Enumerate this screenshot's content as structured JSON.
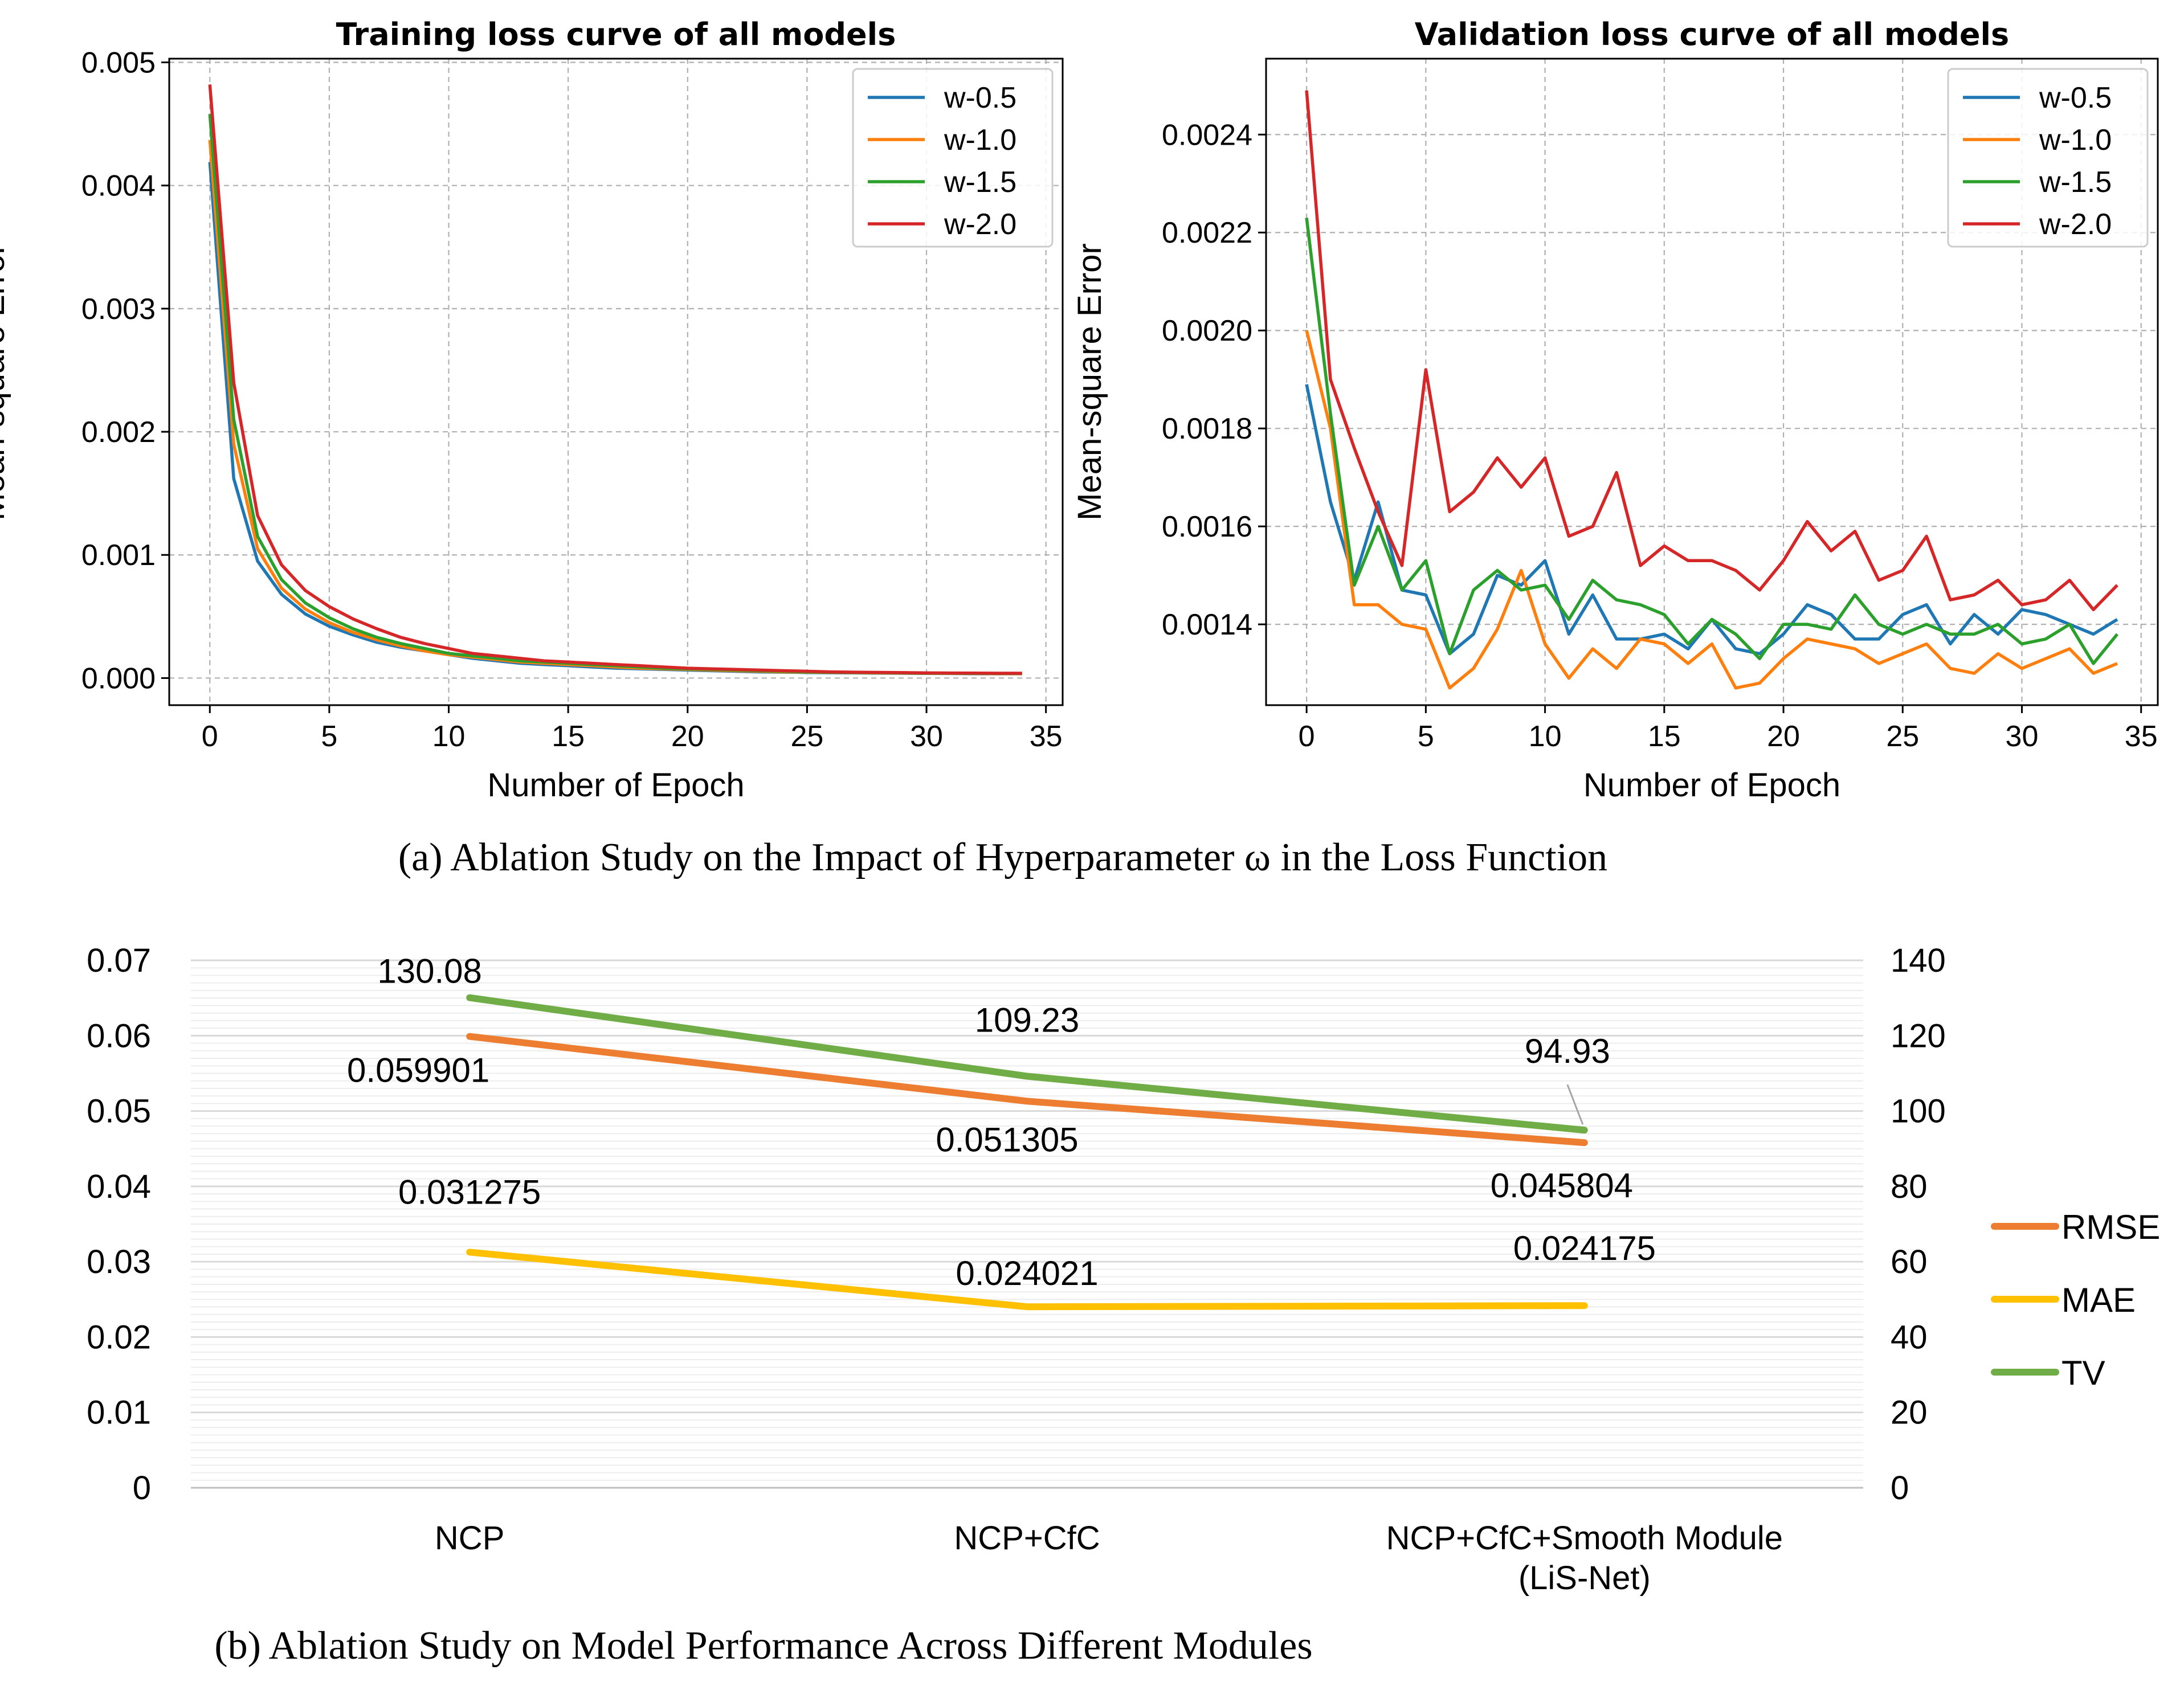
{
  "captions": {
    "a": "(a) Ablation Study on the Impact of Hyperparameter ω in the Loss Function",
    "b": "(b) Ablation Study on Model Performance Across Different Modules"
  },
  "chart_data": [
    {
      "type": "line",
      "title": "Training loss curve of all models",
      "xlabel": "Number of Epoch",
      "ylabel": "Mean-square Error",
      "xlim": [
        -1.7,
        35.7
      ],
      "ylim": [
        -0.00022,
        0.00503
      ],
      "xticks": [
        "0",
        "5",
        "10",
        "15",
        "20",
        "25",
        "30",
        "35"
      ],
      "yticks": [
        "0.000",
        "0.001",
        "0.002",
        "0.003",
        "0.004",
        "0.005"
      ],
      "grid": true,
      "legend": "top-right",
      "series": [
        {
          "name": "w-0.5",
          "color": "#1f77b4",
          "values": [
            0.00419,
            0.00162,
            0.00095,
            0.00068,
            0.00052,
            0.00042,
            0.00035,
            0.00029,
            0.00025,
            0.00022,
            0.00019,
            0.00016,
            0.00014,
            0.00012,
            0.00011,
            0.0001,
            9e-05,
            8e-05,
            7.5e-05,
            7e-05,
            6.5e-05,
            6e-05,
            5.5e-05,
            5e-05,
            4.8e-05,
            4.5e-05,
            4.3e-05,
            4.2e-05,
            4e-05,
            3.9e-05,
            3.8e-05,
            3.7e-05,
            3.6e-05,
            3.5e-05,
            3.5e-05
          ]
        },
        {
          "name": "w-1.0",
          "color": "#ff7f0e",
          "values": [
            0.00437,
            0.0019,
            0.00105,
            0.00073,
            0.00056,
            0.00045,
            0.00037,
            0.00031,
            0.00026,
            0.00022,
            0.00019,
            0.00017,
            0.00015,
            0.00013,
            0.00012,
            0.00011,
            0.0001,
            9e-05,
            8e-05,
            7.5e-05,
            7e-05,
            6.5e-05,
            6e-05,
            5.5e-05,
            5e-05,
            4.8e-05,
            4.6e-05,
            4.4e-05,
            4.2e-05,
            4e-05,
            3.9e-05,
            3.8e-05,
            3.7e-05,
            3.6e-05,
            3.6e-05
          ]
        },
        {
          "name": "w-1.5",
          "color": "#2ca02c",
          "values": [
            0.00458,
            0.0021,
            0.00115,
            0.0008,
            0.00061,
            0.00049,
            0.0004,
            0.00033,
            0.00028,
            0.00024,
            0.0002,
            0.00018,
            0.00016,
            0.00014,
            0.00013,
            0.00012,
            0.00011,
            0.0001,
            9e-05,
            8e-05,
            7.5e-05,
            7e-05,
            6.5e-05,
            6e-05,
            5.5e-05,
            5e-05,
            4.8e-05,
            4.6e-05,
            4.4e-05,
            4.2e-05,
            4e-05,
            3.9e-05,
            3.8e-05,
            3.7e-05,
            3.7e-05
          ]
        },
        {
          "name": "w-2.0",
          "color": "#d62728",
          "values": [
            0.00482,
            0.0024,
            0.00132,
            0.00092,
            0.00071,
            0.00058,
            0.00048,
            0.0004,
            0.00033,
            0.00028,
            0.00024,
            0.0002,
            0.00018,
            0.00016,
            0.00014,
            0.00013,
            0.00012,
            0.00011,
            0.0001,
            9e-05,
            8e-05,
            7.5e-05,
            7e-05,
            6.5e-05,
            6e-05,
            5.5e-05,
            5e-05,
            4.8e-05,
            4.6e-05,
            4.4e-05,
            4.2e-05,
            4.1e-05,
            4e-05,
            3.9e-05,
            3.9e-05
          ]
        }
      ]
    },
    {
      "type": "line",
      "title": "Validation loss curve of all models",
      "xlabel": "Number of Epoch",
      "ylabel": "Mean-square Error",
      "xlim": [
        -1.7,
        35.7
      ],
      "ylim": [
        0.001235,
        0.002555
      ],
      "xticks": [
        "0",
        "5",
        "10",
        "15",
        "20",
        "25",
        "30",
        "35"
      ],
      "yticks": [
        "0.0014",
        "0.0016",
        "0.0018",
        "0.0020",
        "0.0022",
        "0.0024"
      ],
      "grid": true,
      "legend": "top-right",
      "series": [
        {
          "name": "w-0.5",
          "color": "#1f77b4",
          "values": [
            0.00189,
            0.00165,
            0.00149,
            0.00165,
            0.00147,
            0.00146,
            0.00134,
            0.00138,
            0.0015,
            0.00148,
            0.00153,
            0.00138,
            0.00146,
            0.00137,
            0.00137,
            0.00138,
            0.00135,
            0.00141,
            0.00135,
            0.00134,
            0.00138,
            0.00144,
            0.00142,
            0.00137,
            0.00137,
            0.00142,
            0.00144,
            0.00136,
            0.00142,
            0.00138,
            0.00143,
            0.00142,
            0.0014,
            0.00138,
            0.00141
          ]
        },
        {
          "name": "w-1.0",
          "color": "#ff7f0e",
          "values": [
            0.002,
            0.0018,
            0.00144,
            0.00144,
            0.0014,
            0.00139,
            0.00127,
            0.00131,
            0.00139,
            0.00151,
            0.00136,
            0.00129,
            0.00135,
            0.00131,
            0.00137,
            0.00136,
            0.00132,
            0.00136,
            0.00127,
            0.00128,
            0.00133,
            0.00137,
            0.00136,
            0.00135,
            0.00132,
            0.00134,
            0.00136,
            0.00131,
            0.0013,
            0.00134,
            0.00131,
            0.00133,
            0.00135,
            0.0013,
            0.00132
          ]
        },
        {
          "name": "w-1.5",
          "color": "#2ca02c",
          "values": [
            0.00223,
            0.00183,
            0.00148,
            0.0016,
            0.00147,
            0.00153,
            0.00134,
            0.00147,
            0.00151,
            0.00147,
            0.00148,
            0.00141,
            0.00149,
            0.00145,
            0.00144,
            0.00142,
            0.00136,
            0.00141,
            0.00138,
            0.00133,
            0.0014,
            0.0014,
            0.00139,
            0.00146,
            0.0014,
            0.00138,
            0.0014,
            0.00138,
            0.00138,
            0.0014,
            0.00136,
            0.00137,
            0.0014,
            0.00132,
            0.00138
          ]
        },
        {
          "name": "w-2.0",
          "color": "#d62728",
          "values": [
            0.00249,
            0.0019,
            0.00176,
            0.00163,
            0.00152,
            0.00192,
            0.00163,
            0.00167,
            0.00174,
            0.00168,
            0.00174,
            0.00158,
            0.0016,
            0.00171,
            0.00152,
            0.00156,
            0.00153,
            0.00153,
            0.00151,
            0.00147,
            0.00153,
            0.00161,
            0.00155,
            0.00159,
            0.00149,
            0.00151,
            0.00158,
            0.00145,
            0.00146,
            0.00149,
            0.00144,
            0.00145,
            0.00149,
            0.00143,
            0.00148
          ]
        }
      ]
    },
    {
      "type": "line",
      "title": "",
      "xlabel": "",
      "ylabel": "",
      "categories": [
        "NCP",
        "NCP+CfC",
        "NCP+CfC+Smooth Module (LiS-Net)"
      ],
      "category_lines": [
        [
          "NCP"
        ],
        [
          "NCP+CfC"
        ],
        [
          "NCP+CfC+Smooth Module",
          "(LiS-Net)"
        ]
      ],
      "ylim": [
        0,
        0.07
      ],
      "y2lim": [
        0,
        140
      ],
      "yticks": [
        "0",
        "0.01",
        "0.02",
        "0.03",
        "0.04",
        "0.05",
        "0.06",
        "0.07"
      ],
      "y2ticks": [
        "0",
        "20",
        "40",
        "60",
        "80",
        "100",
        "120",
        "140"
      ],
      "legend": "right",
      "series": [
        {
          "name": "RMSE",
          "color": "#ed7d31",
          "axis": "left",
          "values": [
            0.059901,
            0.051305,
            0.045804
          ],
          "labels": [
            "0.059901",
            "0.051305",
            "0.045804"
          ]
        },
        {
          "name": "MAE",
          "color": "#ffc000",
          "axis": "left",
          "values": [
            0.031275,
            0.024021,
            0.024175
          ],
          "labels": [
            "0.031275",
            "0.024021",
            "0.024175"
          ]
        },
        {
          "name": "TV",
          "color": "#70ad47",
          "axis": "right",
          "values": [
            130.08,
            109.23,
            94.93
          ],
          "labels": [
            "130.08",
            "109.23",
            "94.93"
          ]
        }
      ]
    }
  ]
}
